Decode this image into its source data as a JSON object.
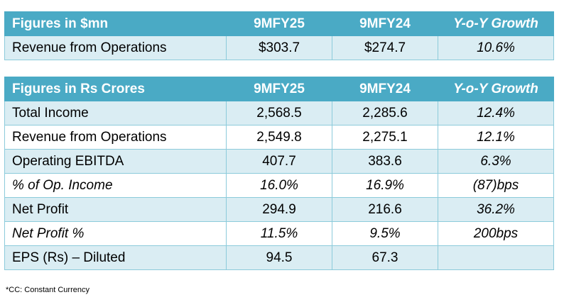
{
  "usd_table": {
    "headers": [
      "Figures in $mn",
      "9MFY25",
      "9MFY24",
      "Y-o-Y Growth"
    ],
    "rows": [
      {
        "label": "Revenue from Operations",
        "v25": "$303.7",
        "v24": "$274.7",
        "growth": "10.6%"
      }
    ]
  },
  "inr_table": {
    "headers": [
      "Figures in Rs Crores",
      "9MFY25",
      "9MFY24",
      "Y-o-Y Growth"
    ],
    "rows": [
      {
        "label": "Total Income",
        "v25": "2,568.5",
        "v24": "2,285.6",
        "growth": "12.4%"
      },
      {
        "label": "Revenue from Operations",
        "v25": "2,549.8",
        "v24": "2,275.1",
        "growth": "12.1%"
      },
      {
        "label": "Operating EBITDA",
        "v25": "407.7",
        "v24": "383.6",
        "growth": "6.3%"
      },
      {
        "label": "% of Op. Income",
        "v25": "16.0%",
        "v24": "16.9%",
        "growth": "(87)bps"
      },
      {
        "label": "Net Profit",
        "v25": "294.9",
        "v24": "216.6",
        "growth": "36.2%"
      },
      {
        "label": "Net Profit %",
        "v25": "11.5%",
        "v24": "9.5%",
        "growth": "200bps"
      },
      {
        "label": "EPS (Rs) – Diluted",
        "v25": "94.5",
        "v24": "67.3",
        "growth": ""
      }
    ]
  },
  "footnote": "*CC: Constant Currency",
  "colors": {
    "header": "#4aaac5",
    "band": "#daedf3",
    "border": "#8ccbdb"
  }
}
